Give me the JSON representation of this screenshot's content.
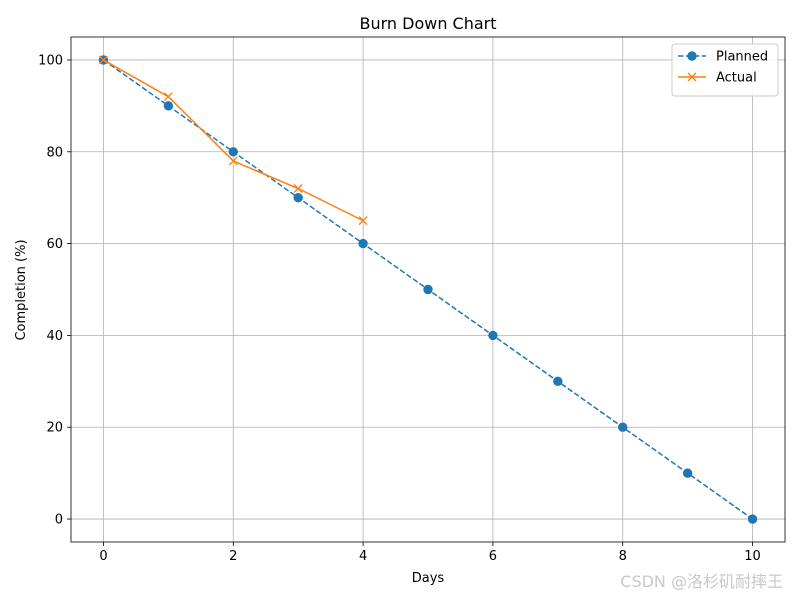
{
  "chart_data": {
    "type": "line",
    "title": "Burn Down Chart",
    "xlabel": "Days",
    "ylabel": "Completion (%)",
    "xlim": [
      -0.5,
      10.5
    ],
    "ylim": [
      -5,
      105
    ],
    "xticks": [
      0,
      2,
      4,
      6,
      8,
      10
    ],
    "yticks": [
      0,
      20,
      40,
      60,
      80,
      100
    ],
    "grid": true,
    "legend_position": "top-right",
    "series": [
      {
        "name": "Planned",
        "color": "#1f77b4",
        "line_style": "dashed",
        "marker": "circle",
        "x": [
          0,
          1,
          2,
          3,
          4,
          5,
          6,
          7,
          8,
          9,
          10
        ],
        "values": [
          100,
          90,
          80,
          70,
          60,
          50,
          40,
          30,
          20,
          10,
          0
        ]
      },
      {
        "name": "Actual",
        "color": "#ff7f0e",
        "line_style": "solid",
        "marker": "x",
        "x": [
          0,
          1,
          2,
          3,
          4
        ],
        "values": [
          100,
          92,
          78,
          72,
          65
        ]
      }
    ]
  },
  "watermark": "CSDN @洛杉矶耐摔王"
}
